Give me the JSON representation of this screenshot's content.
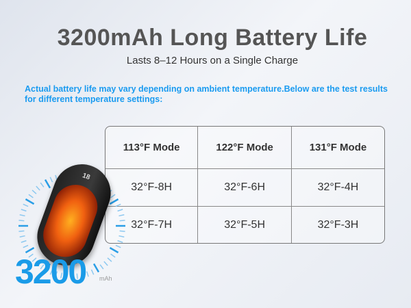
{
  "header": {
    "title": "3200mAh Long Battery Life",
    "subtitle": "Lasts 8–12 Hours on a Single Charge"
  },
  "note": "Actual battery life may vary depending on ambient temperature.Below are the test results for different temperature settings:",
  "table": {
    "columns": [
      "113°F Mode",
      "122°F Mode",
      "131°F Mode"
    ],
    "rows": [
      [
        "32°F-8H",
        "32°F-6H",
        "32°F-4H"
      ],
      [
        "32°F-7H",
        "32°F-5H",
        "32°F-3H"
      ]
    ]
  },
  "product": {
    "capacity": "3200",
    "unit": "mAh",
    "display": "18"
  },
  "colors": {
    "accent": "#1a9be8",
    "title": "#555555"
  }
}
